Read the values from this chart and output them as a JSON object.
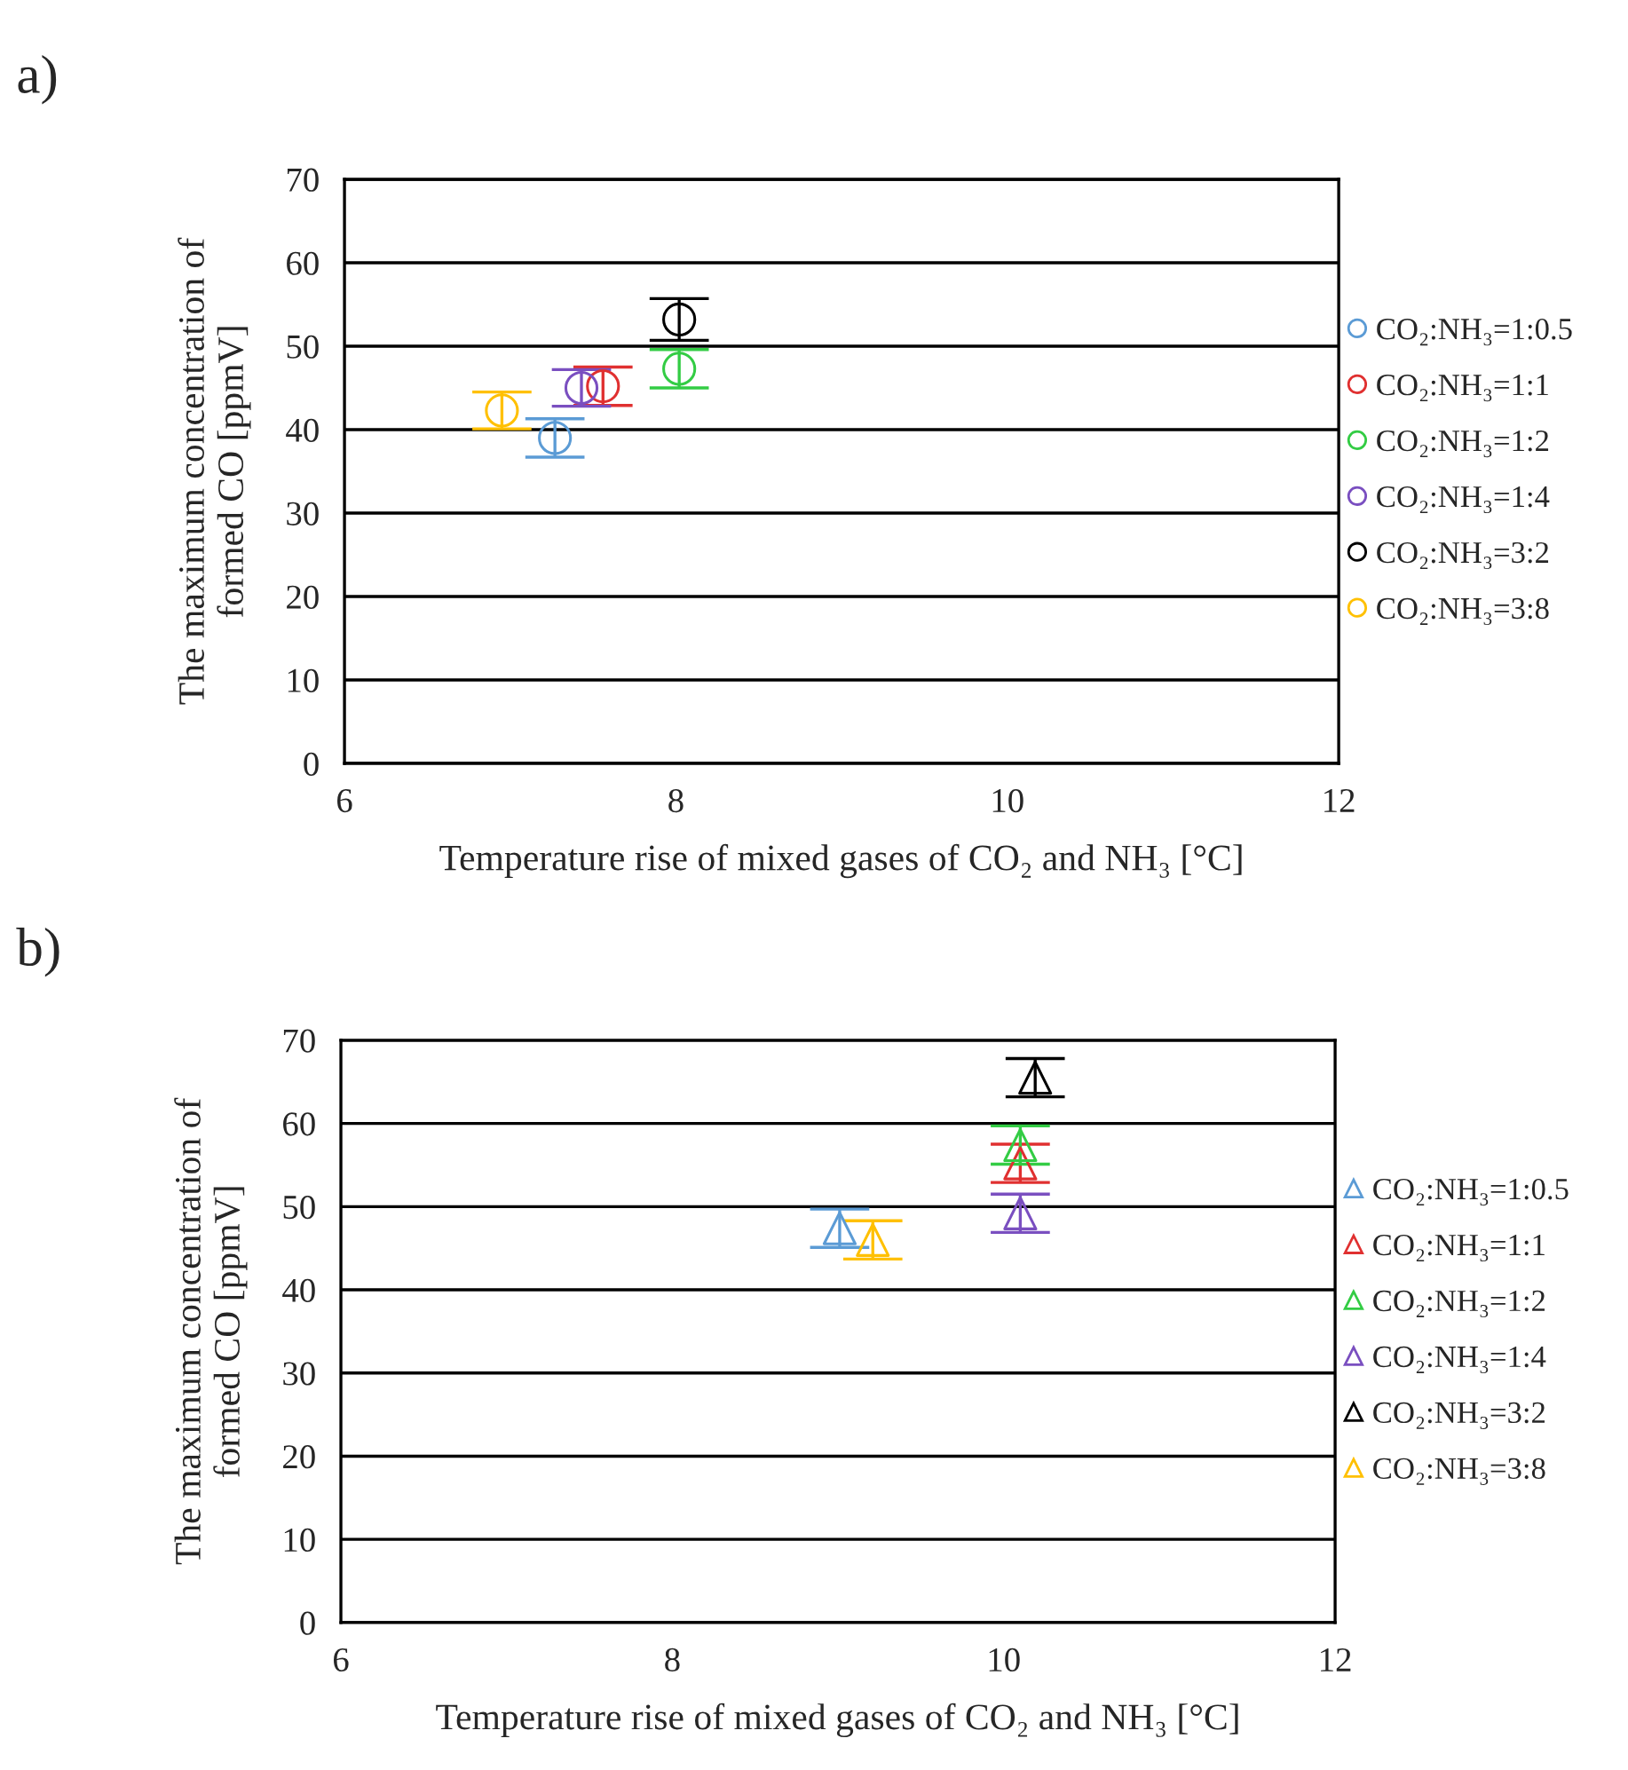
{
  "chart_data": [
    {
      "type": "scatter",
      "title": "a)",
      "xlabel": "Temperature rise of mixed gases of CO₂ and NH₃ [°C]",
      "ylabel": "The maximum concentration of\nformed CO [ppmV]",
      "xlim": [
        6,
        12
      ],
      "xticks": [
        6,
        8,
        10,
        12
      ],
      "ylim": [
        0,
        70
      ],
      "yticks": [
        0,
        10,
        20,
        30,
        40,
        50,
        60,
        70
      ],
      "grid": "y",
      "legend": "right",
      "marker": "circle",
      "series": [
        {
          "name": "CO₂:NH₃=1:0.5",
          "color": "#5b9bd5",
          "x": [
            7.27
          ],
          "values": [
            39.0
          ],
          "errors": [
            2.3
          ]
        },
        {
          "name": "CO₂:NH₃=1:1",
          "color": "#e03030",
          "x": [
            7.56
          ],
          "values": [
            45.2
          ],
          "errors": [
            2.3
          ]
        },
        {
          "name": "CO₂:NH₃=1:2",
          "color": "#33cc44",
          "x": [
            8.02
          ],
          "values": [
            47.3
          ],
          "errors": [
            2.3
          ]
        },
        {
          "name": "CO₂:NH₃=1:4",
          "color": "#7a4fc0",
          "x": [
            7.43
          ],
          "values": [
            45.0
          ],
          "errors": [
            2.2
          ]
        },
        {
          "name": "CO₂:NH₃=3:2",
          "color": "#000000",
          "x": [
            8.02
          ],
          "values": [
            53.2
          ],
          "errors": [
            2.5
          ]
        },
        {
          "name": "CO₂:NH₃=3:8",
          "color": "#ffc000",
          "x": [
            6.95
          ],
          "values": [
            42.3
          ],
          "errors": [
            2.2
          ]
        }
      ]
    },
    {
      "type": "scatter",
      "title": "b)",
      "xlabel": "Temperature rise of mixed gases of CO₂ and NH₃ [°C]",
      "ylabel": "The maximum concentration of\nformed CO [ppmV]",
      "xlim": [
        6,
        12
      ],
      "xticks": [
        6,
        8,
        10,
        12
      ],
      "ylim": [
        0,
        70
      ],
      "yticks": [
        0,
        10,
        20,
        30,
        40,
        50,
        60,
        70
      ],
      "grid": "y",
      "legend": "right",
      "marker": "triangle",
      "series": [
        {
          "name": "CO₂:NH₃=1:0.5",
          "color": "#5b9bd5",
          "x": [
            9.01
          ],
          "values": [
            47.4
          ],
          "errors": [
            2.3
          ]
        },
        {
          "name": "CO₂:NH₃=1:1",
          "color": "#e03030",
          "x": [
            10.1
          ],
          "values": [
            55.2
          ],
          "errors": [
            2.3
          ]
        },
        {
          "name": "CO₂:NH₃=1:2",
          "color": "#33cc44",
          "x": [
            10.1
          ],
          "values": [
            57.4
          ],
          "errors": [
            2.3
          ]
        },
        {
          "name": "CO₂:NH₃=1:4",
          "color": "#7a4fc0",
          "x": [
            10.1
          ],
          "values": [
            49.2
          ],
          "errors": [
            2.3
          ]
        },
        {
          "name": "CO₂:NH₃=3:2",
          "color": "#000000",
          "x": [
            10.19
          ],
          "values": [
            65.5
          ],
          "errors": [
            2.3
          ]
        },
        {
          "name": "CO₂:NH₃=3:8",
          "color": "#ffc000",
          "x": [
            9.21
          ],
          "values": [
            46.0
          ],
          "errors": [
            2.3
          ]
        }
      ]
    }
  ]
}
